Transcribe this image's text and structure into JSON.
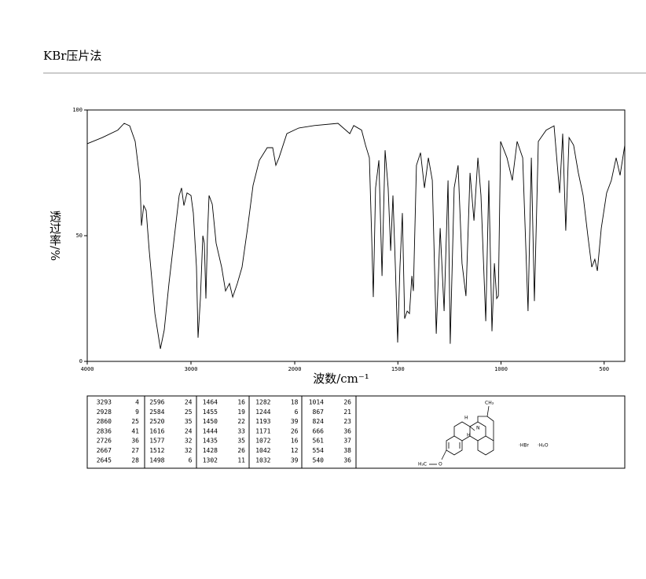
{
  "header": {
    "title": "KBr压片法"
  },
  "chart_data": {
    "type": "line",
    "ylabel": "透过率/%",
    "xlabel": "波数/cm⁻¹",
    "xlim": [
      4000,
      400
    ],
    "xbreak": 2000,
    "xticks": [
      4000,
      3000,
      2000,
      1500,
      1000,
      500
    ],
    "ylim": [
      0,
      100
    ],
    "yticks": [
      0,
      50,
      100
    ],
    "color": "#000000",
    "x": [
      4000,
      3856,
      3705,
      3644,
      3590,
      3538,
      3492,
      3477,
      3455,
      3432,
      3402,
      3348,
      3295,
      3258,
      3212,
      3159,
      3114,
      3091,
      3068,
      3038,
      3000,
      2977,
      2947,
      2932,
      2909,
      2886,
      2871,
      2856,
      2841,
      2826,
      2795,
      2758,
      2705,
      2667,
      2629,
      2598,
      2553,
      2508,
      2455,
      2402,
      2341,
      2265,
      2212,
      2182,
      2152,
      2076,
      1981,
      1905,
      1790,
      1733,
      1714,
      1676,
      1657,
      1638,
      1627,
      1619,
      1608,
      1592,
      1577,
      1562,
      1547,
      1535,
      1524,
      1512,
      1501,
      1490,
      1478,
      1467,
      1455,
      1444,
      1432,
      1425,
      1410,
      1390,
      1371,
      1352,
      1333,
      1314,
      1295,
      1276,
      1257,
      1246,
      1227,
      1208,
      1189,
      1170,
      1150,
      1131,
      1112,
      1097,
      1074,
      1059,
      1044,
      1032,
      1021,
      1013,
      1002,
      971,
      945,
      922,
      895,
      869,
      853,
      838,
      819,
      781,
      743,
      716,
      701,
      686,
      670,
      648,
      625,
      602,
      579,
      560,
      545,
      533,
      514,
      488,
      465,
      442,
      423,
      400
    ],
    "values": [
      86.6,
      89,
      92,
      94.7,
      93.7,
      87.5,
      72,
      54,
      62,
      60,
      44,
      19,
      5,
      12.5,
      31,
      50,
      66,
      69,
      62,
      67,
      66,
      59,
      37.5,
      9.4,
      25,
      50,
      47,
      25,
      50,
      66,
      62.5,
      47,
      37.5,
      28,
      31,
      25.6,
      31,
      37.5,
      53,
      70,
      80,
      85,
      85,
      78,
      81,
      90.6,
      92.8,
      93.8,
      94.7,
      90.6,
      93.8,
      92,
      86,
      81,
      50,
      25.6,
      69,
      80,
      34,
      84,
      69,
      44,
      66,
      37.5,
      7.5,
      37.5,
      59,
      17,
      20,
      19,
      34,
      28,
      78,
      83,
      69,
      81,
      72,
      11,
      53,
      20,
      72,
      7,
      69,
      78,
      39,
      26,
      75,
      56,
      81,
      66,
      16,
      72,
      12,
      39,
      25,
      26,
      87.5,
      81,
      72,
      87.5,
      81,
      20,
      81,
      24,
      87.5,
      92,
      93.7,
      67,
      90.6,
      52,
      89,
      86,
      75,
      66,
      50,
      37.5,
      40.6,
      36,
      53,
      67,
      72,
      81,
      74,
      86
    ]
  },
  "peak_table": [
    [
      [
        3293,
        4
      ],
      [
        2928,
        9
      ],
      [
        2860,
        25
      ],
      [
        2836,
        41
      ],
      [
        2726,
        36
      ],
      [
        2667,
        27
      ],
      [
        2645,
        28
      ]
    ],
    [
      [
        2596,
        24
      ],
      [
        2584,
        25
      ],
      [
        2520,
        35
      ],
      [
        1616,
        24
      ],
      [
        1577,
        32
      ],
      [
        1512,
        32
      ],
      [
        1498,
        6
      ]
    ],
    [
      [
        1464,
        16
      ],
      [
        1455,
        19
      ],
      [
        1450,
        22
      ],
      [
        1444,
        33
      ],
      [
        1435,
        35
      ],
      [
        1428,
        26
      ],
      [
        1302,
        11
      ]
    ],
    [
      [
        1282,
        18
      ],
      [
        1244,
        6
      ],
      [
        1193,
        39
      ],
      [
        1171,
        26
      ],
      [
        1072,
        16
      ],
      [
        1042,
        12
      ],
      [
        1032,
        39
      ]
    ],
    [
      [
        1014,
        26
      ],
      [
        867,
        21
      ],
      [
        824,
        23
      ],
      [
        666,
        36
      ],
      [
        561,
        37
      ],
      [
        554,
        38
      ],
      [
        540,
        36
      ]
    ]
  ],
  "structure": {
    "methyl": "CH₃",
    "nitrogen": "N",
    "h_upper": "H",
    "h_lower": "H",
    "methoxy_methyl": "H₃C",
    "oxygen": "O",
    "salt": "·HBr",
    "hydrate": "·H₂O"
  }
}
